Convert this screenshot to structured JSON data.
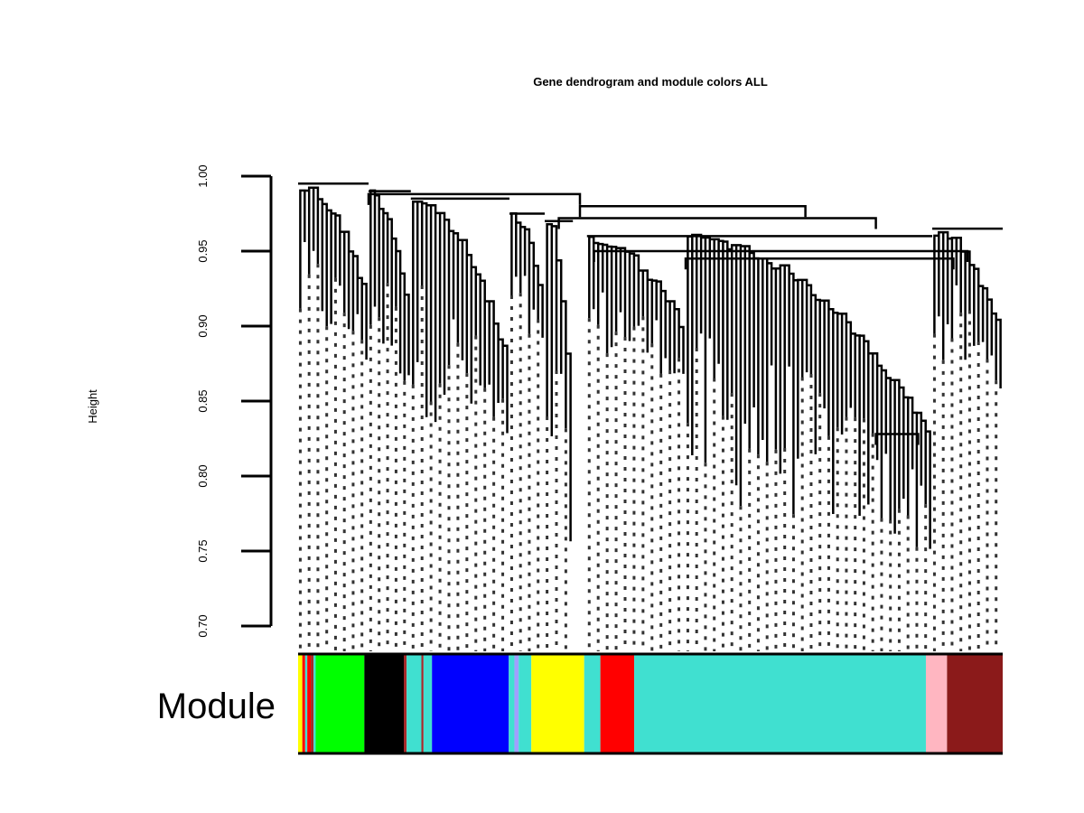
{
  "chart_data": {
    "type": "dendrogram",
    "title": "Gene dendrogram and module colors ALL",
    "ylabel": "Height",
    "ylim": [
      0.7,
      1.0
    ],
    "yticks": [
      "0.70",
      "0.75",
      "0.80",
      "0.85",
      "0.90",
      "0.95",
      "1.00"
    ],
    "dendrogram": {
      "leaf_height": 0.7,
      "branches": [
        {
          "from": 0.0,
          "to": 0.1,
          "min_height": 0.86,
          "top": 0.995
        },
        {
          "from": 0.1,
          "to": 0.16,
          "min_height": 0.84,
          "top": 0.99
        },
        {
          "from": 0.16,
          "to": 0.3,
          "min_height": 0.79,
          "top": 0.985
        },
        {
          "from": 0.3,
          "to": 0.35,
          "min_height": 0.86,
          "top": 0.975
        },
        {
          "from": 0.35,
          "to": 0.39,
          "min_height": 0.73,
          "top": 0.97
        },
        {
          "from": 0.41,
          "to": 0.55,
          "min_height": 0.85,
          "top": 0.96
        },
        {
          "from": 0.55,
          "to": 0.9,
          "min_height": 0.72,
          "top": 0.96
        },
        {
          "from": 0.9,
          "to": 1.0,
          "min_height": 0.84,
          "top": 0.965
        }
      ],
      "merges": [
        {
          "left": 0.1,
          "right": 0.4,
          "height": 0.988
        },
        {
          "left": 0.4,
          "right": 0.72,
          "height": 0.98
        },
        {
          "left": 0.37,
          "right": 0.82,
          "height": 0.972
        },
        {
          "left": 0.42,
          "right": 0.95,
          "height": 0.95
        },
        {
          "left": 0.55,
          "right": 0.93,
          "height": 0.945
        },
        {
          "left": 0.82,
          "right": 0.88,
          "height": 0.828
        }
      ]
    },
    "module_row_label": "Module",
    "modules": [
      {
        "color": "#ffff00",
        "start": 0.0,
        "end": 0.006
      },
      {
        "color": "#ff0000",
        "start": 0.006,
        "end": 0.01
      },
      {
        "color": "#40e0d0",
        "start": 0.01,
        "end": 0.013
      },
      {
        "color": "#ff0000",
        "start": 0.013,
        "end": 0.018
      },
      {
        "color": "#a52a2a",
        "start": 0.018,
        "end": 0.022
      },
      {
        "color": "#40e0d0",
        "start": 0.022,
        "end": 0.025
      },
      {
        "color": "#00ff00",
        "start": 0.025,
        "end": 0.094
      },
      {
        "color": "#000000",
        "start": 0.094,
        "end": 0.15
      },
      {
        "color": "#a52a2a",
        "start": 0.15,
        "end": 0.154
      },
      {
        "color": "#40e0d0",
        "start": 0.154,
        "end": 0.175
      },
      {
        "color": "#a52a2a",
        "start": 0.175,
        "end": 0.178
      },
      {
        "color": "#40e0d0",
        "start": 0.178,
        "end": 0.19
      },
      {
        "color": "#0000ff",
        "start": 0.19,
        "end": 0.299
      },
      {
        "color": "#40e0d0",
        "start": 0.299,
        "end": 0.307
      },
      {
        "color": "#a0a0ff",
        "start": 0.307,
        "end": 0.313
      },
      {
        "color": "#40e0d0",
        "start": 0.313,
        "end": 0.331
      },
      {
        "color": "#ffff00",
        "start": 0.331,
        "end": 0.406
      },
      {
        "color": "#40e0d0",
        "start": 0.406,
        "end": 0.429
      },
      {
        "color": "#ff0000",
        "start": 0.429,
        "end": 0.477
      },
      {
        "color": "#40e0d0",
        "start": 0.477,
        "end": 0.891
      },
      {
        "color": "#ffb6c1",
        "start": 0.891,
        "end": 0.921
      },
      {
        "color": "#8b1a1a",
        "start": 0.921,
        "end": 1.0
      }
    ]
  }
}
